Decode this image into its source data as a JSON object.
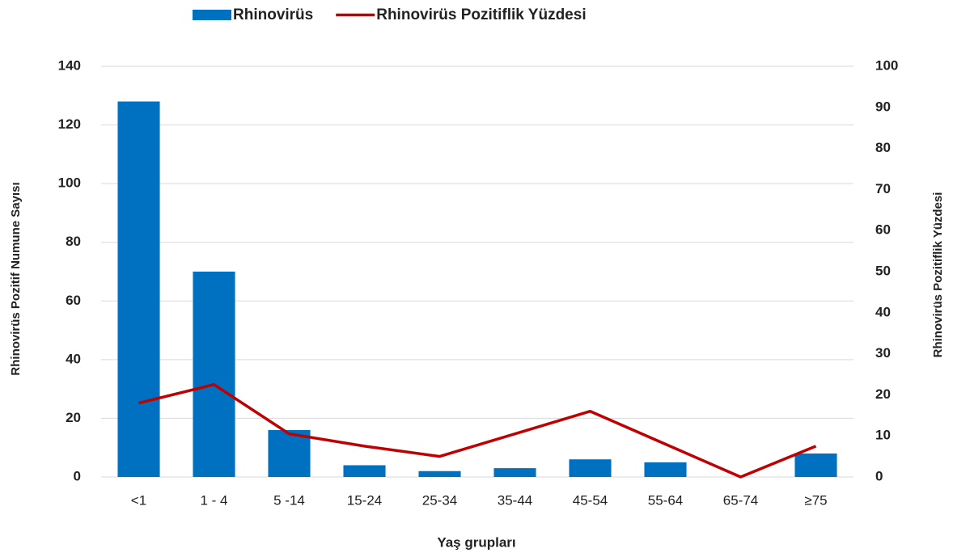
{
  "chart_data": {
    "type": "bar",
    "x_label": "Yaş grupları",
    "y_label": "Rhinovirüs Pozitif Numune Sayısı",
    "y2_label": "Rhinovirüs  Pozitiflik Yüzdesi",
    "categories": [
      "<1",
      "1 - 4",
      "5 -14",
      "15-24",
      "25-34",
      "35-44",
      "45-54",
      "55-64",
      "65-74",
      "≥75"
    ],
    "series": [
      {
        "name": "Rhinovirüs",
        "type": "bar",
        "color": "#0070c0",
        "values": [
          128,
          70,
          16,
          4,
          2,
          3,
          6,
          5,
          0,
          8
        ]
      },
      {
        "name": "Rhinovirüs Pozitiflik Yüzdesi",
        "type": "line",
        "axis": "y2",
        "color": "#c00000",
        "values": [
          18,
          22.5,
          10.5,
          7.5,
          5,
          10.5,
          16,
          8,
          0,
          7.5
        ]
      }
    ],
    "ylim": [
      0,
      140
    ],
    "yticks": [
      0,
      20,
      40,
      60,
      80,
      100,
      120,
      140
    ],
    "y2lim": [
      0,
      100
    ],
    "y2ticks": [
      0,
      10,
      20,
      30,
      40,
      50,
      60,
      70,
      80,
      90,
      100
    ],
    "grid": true,
    "legend": "top"
  }
}
